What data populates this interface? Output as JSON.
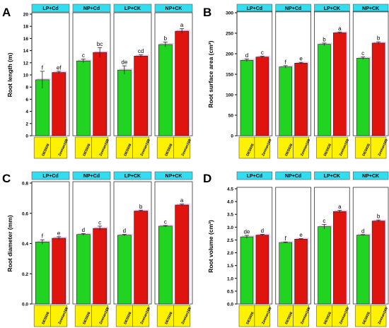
{
  "colors": {
    "header_fill": "#33ddf0",
    "xlabel_fill": "#fff200",
    "bar_DES926": "#22d422",
    "bar_Zemian169": "#e0140f",
    "shadow": "#f3b8ee"
  },
  "chart_data": [
    {
      "panel": "A",
      "type": "bar",
      "ylabel": "Root length (m)",
      "ylim": [
        0,
        20
      ],
      "ytick_step": 2,
      "groups": [
        "LP+Cd",
        "NP+Cd",
        "LP+CK",
        "NP+CK"
      ],
      "categories": [
        "DES926",
        "Zemian169"
      ],
      "values": [
        [
          9.2,
          10.4
        ],
        [
          12.3,
          13.7
        ],
        [
          10.8,
          13.1
        ],
        [
          15.0,
          17.2
        ]
      ],
      "errors": [
        [
          1.4,
          0.2
        ],
        [
          0.3,
          0.8
        ],
        [
          0.7,
          0.2
        ],
        [
          0.4,
          0.4
        ]
      ],
      "letters": [
        [
          "f",
          "ef"
        ],
        [
          "c",
          "bc"
        ],
        [
          "de",
          "cd"
        ],
        [
          "b",
          "a"
        ]
      ]
    },
    {
      "panel": "B",
      "type": "bar",
      "ylabel": "Root surface area (cm²)",
      "ylim": [
        0,
        300
      ],
      "ytick_step": 50,
      "groups": [
        "LP+Cd",
        "NP+Cd",
        "LP+CK",
        "NP+CK"
      ],
      "categories": [
        "DES926",
        "Zemian169"
      ],
      "values": [
        [
          184,
          192
        ],
        [
          168,
          177
        ],
        [
          223,
          251
        ],
        [
          189,
          226
        ]
      ],
      "errors": [
        [
          3,
          2
        ],
        [
          3,
          2
        ],
        [
          3,
          2
        ],
        [
          3,
          3
        ]
      ],
      "letters": [
        [
          "d",
          "c"
        ],
        [
          "f",
          "e"
        ],
        [
          "b",
          "a"
        ],
        [
          "c",
          "b"
        ]
      ]
    },
    {
      "panel": "C",
      "type": "bar",
      "ylabel": "Root diameter (mm)",
      "ylim": [
        0,
        0.8
      ],
      "ytick_step": 0.2,
      "groups": [
        "LP+Cd",
        "NP+Cd",
        "LP+CK",
        "NP+CK"
      ],
      "categories": [
        "DES926",
        "Zemian169"
      ],
      "values": [
        [
          0.41,
          0.435
        ],
        [
          0.46,
          0.5
        ],
        [
          0.455,
          0.615
        ],
        [
          0.515,
          0.655
        ]
      ],
      "errors": [
        [
          0.015,
          0.01
        ],
        [
          0.006,
          0.015
        ],
        [
          0.006,
          0.006
        ],
        [
          0.004,
          0.006
        ]
      ],
      "letters": [
        [
          "f",
          "e"
        ],
        [
          "d",
          "c"
        ],
        [
          "d",
          "b"
        ],
        [
          "c",
          "a"
        ]
      ]
    },
    {
      "panel": "D",
      "type": "bar",
      "ylabel": "Root volume (cm³)",
      "ylim": [
        0,
        4.5
      ],
      "ytick_step": 0.5,
      "groups": [
        "LP+Cd",
        "NP+Cd",
        "LP+CK",
        "NP+CK"
      ],
      "categories": [
        "DES926",
        "Zemian169"
      ],
      "values": [
        [
          2.62,
          2.69
        ],
        [
          2.4,
          2.53
        ],
        [
          3.02,
          3.61
        ],
        [
          2.69,
          3.24
        ]
      ],
      "errors": [
        [
          0.06,
          0.03
        ],
        [
          0.02,
          0.02
        ],
        [
          0.09,
          0.05
        ],
        [
          0.02,
          0.04
        ]
      ],
      "letters": [
        [
          "de",
          "d"
        ],
        [
          "f",
          "e"
        ],
        [
          "c",
          "a"
        ],
        [
          "d",
          "b"
        ]
      ]
    }
  ]
}
